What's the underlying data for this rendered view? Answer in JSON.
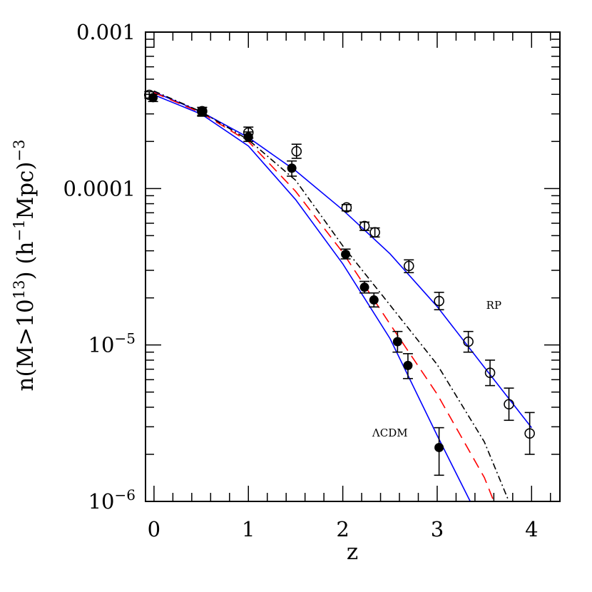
{
  "chart_data": {
    "type": "scatter",
    "xlabel": "z",
    "ylabel_parts": [
      {
        "t": "n(M>10"
      },
      {
        "t": "13",
        "sup": true
      },
      {
        "t": ")  (h"
      },
      {
        "t": "−1",
        "sup": true
      },
      {
        "t": "Mpc)"
      },
      {
        "t": "−3",
        "sup": true
      }
    ],
    "xlim": [
      -0.09,
      4.3
    ],
    "ylim": [
      1e-06,
      0.001
    ],
    "yscale": "log",
    "grid": false,
    "x_ticks": [
      0,
      1,
      2,
      3,
      4
    ],
    "x_tick_labels": [
      "0",
      "1",
      "2",
      "3",
      "4"
    ],
    "y_ticks": [
      0.001,
      0.0001,
      1e-05,
      1e-06
    ],
    "y_tick_labels": [
      {
        "base": "0.001",
        "exp": ""
      },
      {
        "base": "0.0001",
        "exp": ""
      },
      {
        "base": "10",
        "exp": "−5"
      },
      {
        "base": "10",
        "exp": "−6"
      }
    ],
    "annotations": [
      {
        "text": "RP",
        "z": 3.6,
        "n": 1.7e-05
      },
      {
        "text": "ΛCDM",
        "z": 2.5,
        "n": 2.6e-06
      }
    ],
    "series": [
      {
        "marker": "open-circle",
        "color": "#000000",
        "x": [
          -0.05,
          0.51,
          1.0,
          1.51,
          2.04,
          2.23,
          2.34,
          2.7,
          3.02,
          3.33,
          3.56,
          3.76,
          3.98
        ],
        "y": [
          0.000397,
          0.000312,
          0.000228,
          0.000173,
          7.57e-05,
          5.76e-05,
          5.25e-05,
          3.2e-05,
          1.91e-05,
          1.05e-05,
          6.64e-06,
          4.18e-06,
          2.72e-06
        ],
        "y_low": [
          0.000379,
          0.000294,
          0.00021,
          0.000156,
          7.2e-05,
          5.4e-05,
          4.9e-05,
          2.9e-05,
          1.68e-05,
          9e-06,
          5.5e-06,
          3.3e-06,
          2e-06
        ],
        "y_high": [
          0.000416,
          0.00033,
          0.000247,
          0.000192,
          7.9e-05,
          6.1e-05,
          5.6e-05,
          3.5e-05,
          2.17e-05,
          1.22e-05,
          8e-06,
          5.3e-06,
          3.7e-06
        ]
      },
      {
        "marker": "filled-circle",
        "color": "#000000",
        "x": [
          -0.01,
          0.51,
          1.0,
          1.46,
          2.03,
          2.23,
          2.33,
          2.58,
          2.69,
          3.02
        ],
        "y": [
          0.000381,
          0.000309,
          0.000214,
          0.000135,
          3.8e-05,
          2.34e-05,
          1.94e-05,
          1.05e-05,
          7.4e-06,
          2.21e-06
        ],
        "y_low": [
          0.00036,
          0.00029,
          0.0002,
          0.00012,
          3.55e-05,
          2.15e-05,
          1.75e-05,
          9e-06,
          6.1e-06,
          1.47e-06
        ],
        "y_high": [
          0.0004,
          0.00033,
          0.00023,
          0.00015,
          4.1e-05,
          2.55e-05,
          2.15e-05,
          1.22e-05,
          8.8e-06,
          2.96e-06
        ]
      },
      {
        "line": "solid",
        "color": "#0000ff",
        "x": [
          0,
          0.5,
          1.0,
          1.5,
          2.0,
          2.5,
          3.0,
          3.5,
          4.0
        ],
        "y": [
          0.000414,
          0.000309,
          0.000212,
          0.00013,
          7.3e-05,
          3.83e-05,
          1.76e-05,
          7.2e-06,
          2.96e-06
        ]
      },
      {
        "line": "solid",
        "color": "#0000ff",
        "x": [
          0,
          0.5,
          1.0,
          1.5,
          2.0,
          2.5,
          3.0,
          3.35
        ],
        "y": [
          0.000397,
          0.000299,
          0.000187,
          8.5e-05,
          3.3e-05,
          1.1e-05,
          2.64e-06,
          1e-06
        ]
      },
      {
        "line": "dashed",
        "color": "#ff0000",
        "x": [
          0,
          0.5,
          1.0,
          1.5,
          2.0,
          2.5,
          3.0,
          3.5,
          3.6
        ],
        "y": [
          0.00041,
          0.000305,
          0.0002,
          9.6e-05,
          3.9e-05,
          1.36e-05,
          4.85e-06,
          1.42e-06,
          1e-06
        ]
      },
      {
        "line": "dash-dot",
        "color": "#000000",
        "x": [
          0,
          0.5,
          1.0,
          1.5,
          2.0,
          2.5,
          3.0,
          3.5,
          3.76
        ],
        "y": [
          0.00042,
          0.00031,
          0.000205,
          0.000113,
          4.3e-05,
          1.8e-05,
          7.5e-06,
          2.4e-06,
          1e-06
        ]
      }
    ]
  }
}
